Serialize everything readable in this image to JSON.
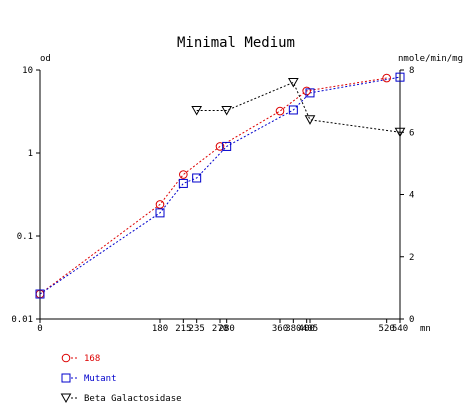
{
  "chart_data": {
    "type": "line",
    "title": "Minimal Medium",
    "xlabel": "mn",
    "ylabel": "od",
    "y2label": "nmole/min/mg",
    "xlim": [
      0,
      540
    ],
    "ylim": [
      0.01,
      10
    ],
    "yscale": "log",
    "y2lim": [
      0,
      8
    ],
    "grid": false,
    "legend_position": "bottom-left",
    "x_ticks": [
      0,
      180,
      215,
      235,
      270,
      280,
      360,
      380,
      400,
      405,
      520,
      540
    ],
    "y_ticks": [
      {
        "value": 0.01,
        "label": "0.01"
      },
      {
        "value": 0.1,
        "label": "0.1"
      },
      {
        "value": 1,
        "label": "1"
      },
      {
        "value": 10,
        "label": "10"
      }
    ],
    "y2_ticks": [
      0,
      2,
      4,
      6,
      8
    ],
    "series": [
      {
        "name": "168",
        "axis": "left",
        "color": "#dd0000",
        "marker": "circle",
        "x": [
          0,
          180,
          215,
          270,
          360,
          400,
          520
        ],
        "y": [
          0.02,
          0.24,
          0.55,
          1.2,
          3.2,
          5.6,
          8.0
        ]
      },
      {
        "name": "Mutant",
        "axis": "left",
        "color": "#0000cc",
        "marker": "square",
        "x": [
          0,
          180,
          215,
          235,
          280,
          380,
          405,
          540
        ],
        "y": [
          0.02,
          0.19,
          0.43,
          0.5,
          1.2,
          3.3,
          5.3,
          8.2
        ]
      },
      {
        "name": "Beta Galactosidase",
        "axis": "right",
        "color": "#000000",
        "marker": "triangle-down",
        "x": [
          235,
          280,
          380,
          405,
          540
        ],
        "y": [
          6.7,
          6.7,
          7.6,
          6.4,
          6.0
        ]
      }
    ]
  }
}
